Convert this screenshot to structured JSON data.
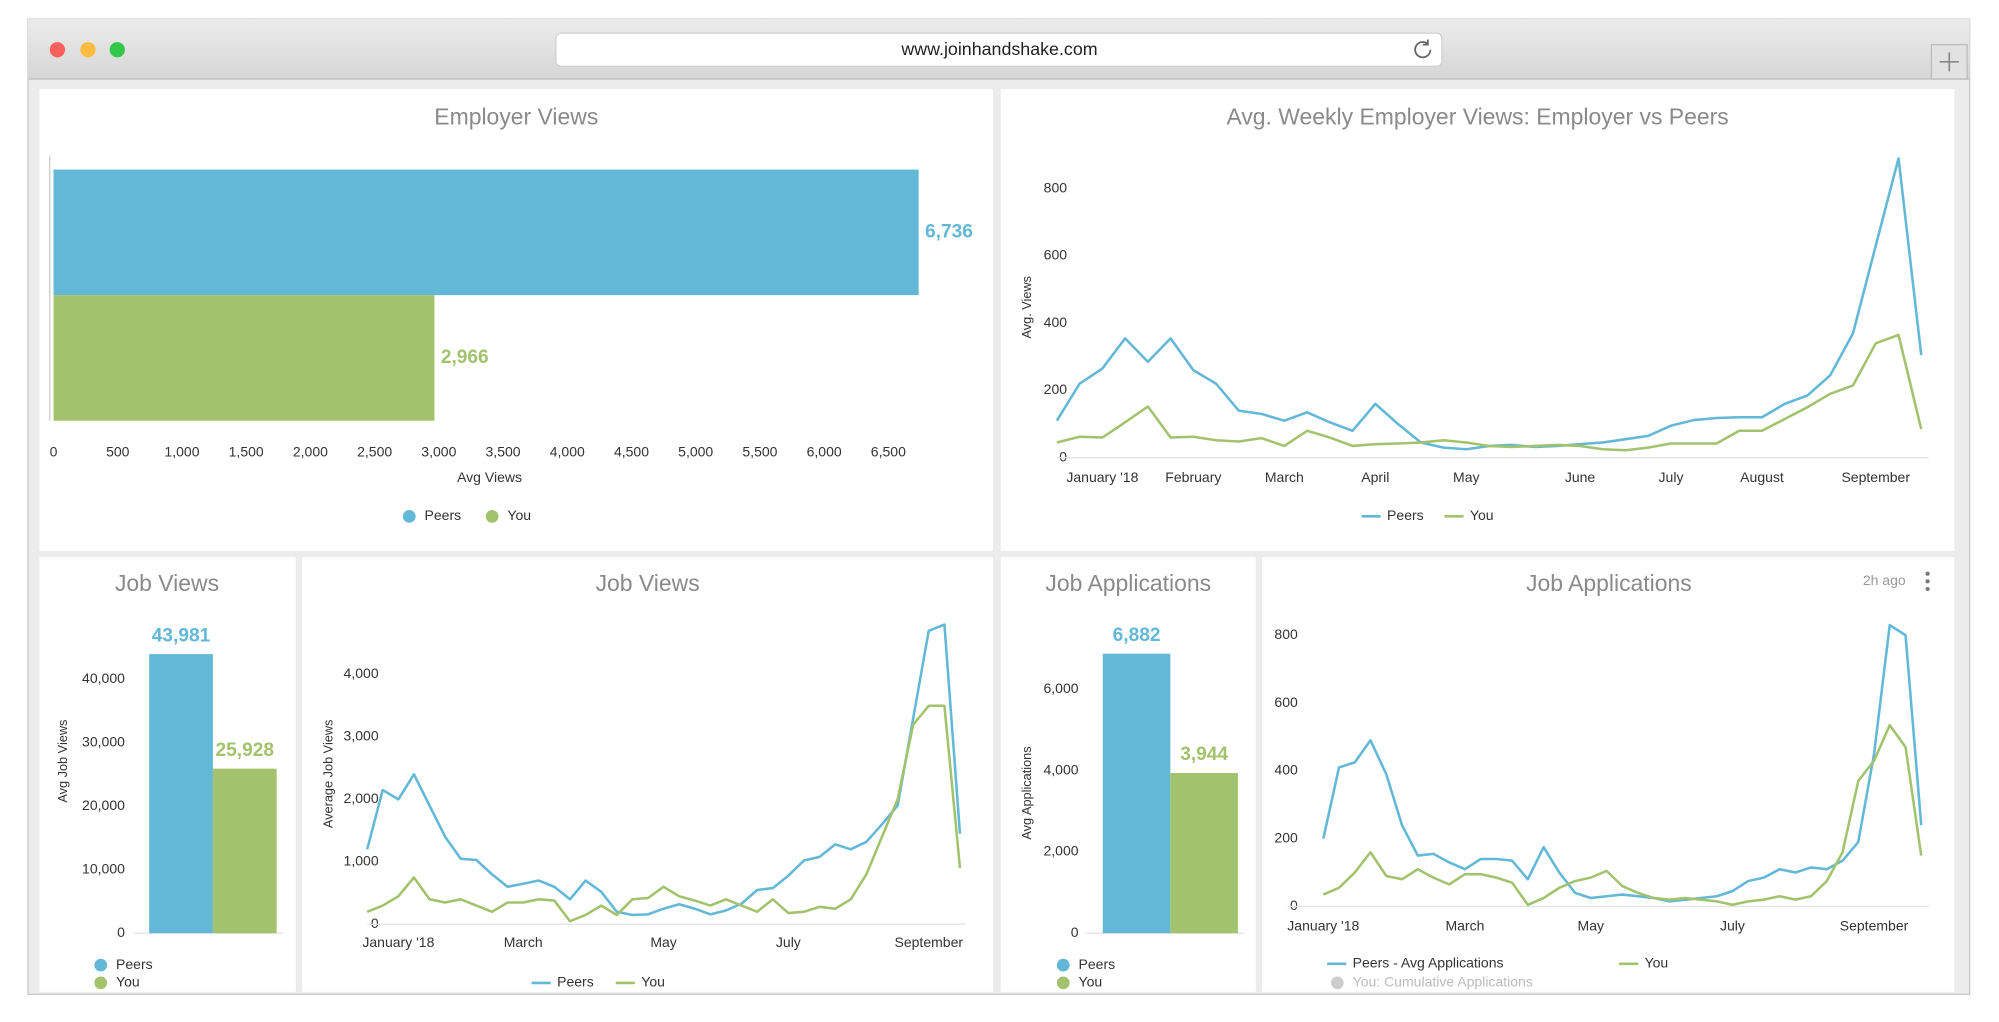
{
  "browser": {
    "url": "www.joinhandshake.com"
  },
  "chart_data": [
    {
      "type": "bar",
      "orientation": "horizontal",
      "title": "Employer Views",
      "categories": [
        "Peers",
        "You"
      ],
      "values": [
        6736,
        2966
      ],
      "value_labels": [
        "6,736",
        "2,966"
      ],
      "colors": [
        "#62b8d6",
        "#a3c26e"
      ],
      "xlabel": "Avg Views",
      "xlim": [
        0,
        6750
      ],
      "xticks": [
        0,
        500,
        {
          "value": 1000,
          "label": "1,000"
        },
        {
          "value": 1500,
          "label": "1,500"
        },
        {
          "value": 2000,
          "label": "2,000"
        },
        {
          "value": 2500,
          "label": "2,500"
        },
        {
          "value": 3000,
          "label": "3,000"
        },
        {
          "value": 3500,
          "label": "3,500"
        },
        {
          "value": 4000,
          "label": "4,000"
        },
        {
          "value": 4500,
          "label": "4,500"
        },
        {
          "value": 5000,
          "label": "5,000"
        },
        {
          "value": 5500,
          "label": "5,500"
        },
        {
          "value": 6000,
          "label": "6,000"
        },
        {
          "value": 6500,
          "label": "6,500"
        }
      ],
      "legend": "bottom"
    },
    {
      "type": "line",
      "title": "Avg. Weekly Employer Views: Employer vs Peers",
      "categories": [
        null,
        null,
        "January '18",
        null,
        null,
        null,
        "February",
        null,
        null,
        null,
        "March",
        null,
        null,
        null,
        "April",
        null,
        null,
        null,
        "May",
        null,
        null,
        null,
        null,
        "June",
        null,
        null,
        null,
        "July",
        null,
        null,
        null,
        "August",
        null,
        null,
        null,
        null,
        "September",
        null,
        null
      ],
      "series": [
        {
          "name": "Peers",
          "color": "#62b8d6",
          "values": [
            110,
            220,
            265,
            355,
            285,
            355,
            260,
            220,
            140,
            130,
            110,
            135,
            105,
            80,
            160,
            100,
            45,
            30,
            25,
            35,
            38,
            32,
            35,
            40,
            45,
            55,
            65,
            95,
            112,
            118,
            120,
            120,
            160,
            185,
            245,
            370,
            630,
            890,
            305
          ]
        },
        {
          "name": "You",
          "color": "#a3c26e",
          "values": [
            45,
            62,
            60,
            105,
            152,
            60,
            62,
            52,
            48,
            58,
            35,
            80,
            60,
            35,
            40,
            42,
            45,
            52,
            45,
            35,
            32,
            35,
            38,
            35,
            25,
            22,
            30,
            42,
            42,
            42,
            80,
            80,
            115,
            150,
            190,
            215,
            340,
            365,
            85
          ]
        }
      ],
      "ylabel": "Avg. Views",
      "ylim": [
        0,
        900
      ],
      "yticks": [
        0,
        200,
        400,
        600,
        800
      ],
      "legend": "bottom"
    },
    {
      "type": "bar",
      "orientation": "vertical",
      "title": "Job Views",
      "categories": [
        "Peers",
        "You"
      ],
      "values": [
        43981,
        25928
      ],
      "value_labels": [
        "43,981",
        "25,928"
      ],
      "colors": [
        "#62b8d6",
        "#a3c26e"
      ],
      "ylabel": "Avg Job Views",
      "ylim": [
        0,
        45000
      ],
      "yticks": [
        0,
        {
          "value": 10000,
          "label": "10,000"
        },
        {
          "value": 20000,
          "label": "20,000"
        },
        {
          "value": 30000,
          "label": "30,000"
        },
        {
          "value": 40000,
          "label": "40,000"
        }
      ],
      "legend": "bottom-left"
    },
    {
      "type": "line",
      "title": "Job Views",
      "categories": [
        null,
        null,
        "January '18",
        null,
        null,
        null,
        null,
        null,
        null,
        null,
        "March",
        null,
        null,
        null,
        null,
        null,
        null,
        null,
        null,
        "May",
        null,
        null,
        null,
        null,
        null,
        null,
        null,
        "July",
        null,
        null,
        null,
        null,
        null,
        null,
        null,
        null,
        "September",
        null,
        null
      ],
      "series": [
        {
          "name": "Peers",
          "color": "#62b8d6",
          "values": [
            1200,
            2150,
            2000,
            2400,
            1900,
            1400,
            1050,
            1030,
            800,
            600,
            650,
            700,
            600,
            400,
            700,
            520,
            200,
            150,
            160,
            250,
            320,
            250,
            160,
            220,
            330,
            550,
            580,
            780,
            1020,
            1080,
            1280,
            1200,
            1320,
            1600,
            1900,
            3300,
            4700,
            4800,
            1450
          ]
        },
        {
          "name": "You",
          "color": "#a3c26e",
          "values": [
            200,
            300,
            450,
            750,
            400,
            350,
            400,
            300,
            200,
            350,
            350,
            400,
            380,
            50,
            150,
            300,
            150,
            400,
            420,
            600,
            450,
            380,
            300,
            400,
            300,
            200,
            400,
            180,
            200,
            280,
            250,
            400,
            800,
            1400,
            2000,
            3200,
            3500,
            3500,
            900
          ]
        }
      ],
      "ylabel": "Average Job Views",
      "ylim": [
        0,
        4900
      ],
      "yticks": [
        0,
        {
          "value": 1000,
          "label": "1,000"
        },
        {
          "value": 2000,
          "label": "2,000"
        },
        {
          "value": 3000,
          "label": "3,000"
        },
        {
          "value": 4000,
          "label": "4,000"
        }
      ],
      "legend": "bottom"
    },
    {
      "type": "bar",
      "orientation": "vertical",
      "title": "Job Applications",
      "categories": [
        "Peers",
        "You"
      ],
      "values": [
        6882,
        3944
      ],
      "value_labels": [
        "6,882",
        "3,944"
      ],
      "colors": [
        "#62b8d6",
        "#a3c26e"
      ],
      "ylabel": "Avg Applications",
      "ylim": [
        0,
        7000
      ],
      "yticks": [
        0,
        {
          "value": 2000,
          "label": "2,000"
        },
        {
          "value": 4000,
          "label": "4,000"
        },
        {
          "value": 6000,
          "label": "6,000"
        }
      ],
      "legend": "bottom-left"
    },
    {
      "type": "line",
      "title": "Job Applications",
      "annotation": "2h ago",
      "categories": [
        "January '18",
        null,
        null,
        null,
        null,
        null,
        null,
        null,
        null,
        "March",
        null,
        null,
        null,
        null,
        null,
        null,
        null,
        "May",
        null,
        null,
        null,
        null,
        null,
        null,
        null,
        null,
        "July",
        null,
        null,
        null,
        null,
        null,
        null,
        null,
        null,
        "September",
        null,
        null,
        null
      ],
      "series": [
        {
          "name": "Peers - Avg Applications",
          "color": "#62b8d6",
          "values": [
            200,
            410,
            425,
            490,
            390,
            240,
            150,
            155,
            130,
            110,
            140,
            140,
            135,
            80,
            175,
            100,
            40,
            25,
            30,
            35,
            30,
            25,
            15,
            20,
            25,
            30,
            45,
            75,
            85,
            110,
            100,
            115,
            110,
            135,
            190,
            450,
            830,
            800,
            240
          ]
        },
        {
          "name": "You",
          "color": "#a3c26e",
          "values": [
            35,
            55,
            100,
            160,
            90,
            80,
            110,
            85,
            65,
            95,
            95,
            85,
            70,
            5,
            25,
            55,
            75,
            85,
            105,
            60,
            40,
            25,
            20,
            25,
            20,
            15,
            5,
            15,
            20,
            30,
            20,
            30,
            75,
            160,
            370,
            430,
            535,
            470,
            150
          ]
        },
        {
          "name": "You: Cumulative Applications",
          "color": "#cccccc",
          "hidden": true
        }
      ],
      "ylim": [
        0,
        850
      ],
      "yticks": [
        0,
        200,
        400,
        600,
        800
      ],
      "legend": "bottom"
    }
  ]
}
